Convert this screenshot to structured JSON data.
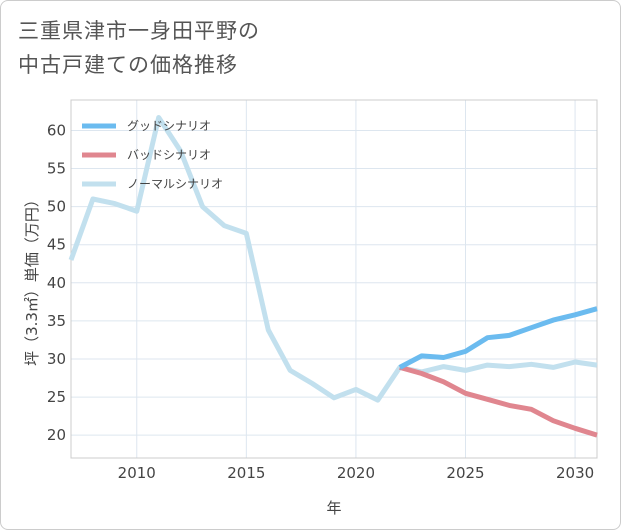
{
  "title_lines": [
    "三重県津市一身田平野の",
    "中古戸建ての価格推移"
  ],
  "chart_data": {
    "type": "line",
    "title": "三重県津市一身田平野の中古戸建ての価格推移",
    "xlabel": "年",
    "ylabel": "坪（3.3㎡）単価（万円）",
    "xlim": [
      2007,
      2031
    ],
    "ylim": [
      17,
      64
    ],
    "xticks": [
      2010,
      2015,
      2020,
      2025,
      2030
    ],
    "yticks": [
      20,
      25,
      30,
      35,
      40,
      45,
      50,
      55,
      60
    ],
    "grid": true,
    "legend_position": "top-left",
    "series": [
      {
        "name": "グッドシナリオ",
        "color": "#6bbbef",
        "x": [
          2022,
          2023,
          2024,
          2025,
          2026,
          2027,
          2028,
          2029,
          2030,
          2031
        ],
        "values": [
          28.9,
          30.4,
          30.2,
          31.0,
          32.8,
          33.1,
          34.1,
          35.1,
          35.8,
          36.6
        ]
      },
      {
        "name": "バッドシナリオ",
        "color": "#e0868f",
        "x": [
          2022,
          2023,
          2024,
          2025,
          2026,
          2027,
          2028,
          2029,
          2030,
          2031
        ],
        "values": [
          28.9,
          28.1,
          27.0,
          25.5,
          24.7,
          23.9,
          23.4,
          21.9,
          20.9,
          20.0
        ]
      },
      {
        "name": "ノーマルシナリオ",
        "color": "#c2e0ee",
        "x": [
          2007,
          2008,
          2009,
          2010,
          2011,
          2012,
          2013,
          2014,
          2015,
          2016,
          2017,
          2018,
          2019,
          2020,
          2021,
          2022,
          2023,
          2024,
          2025,
          2026,
          2027,
          2028,
          2029,
          2030,
          2031
        ],
        "values": [
          43.0,
          51.0,
          50.4,
          49.4,
          61.7,
          57.3,
          50.0,
          47.5,
          46.5,
          33.8,
          28.5,
          26.8,
          24.9,
          26.0,
          24.6,
          28.9,
          28.3,
          29.0,
          28.5,
          29.2,
          29.0,
          29.3,
          28.9,
          29.6,
          29.2
        ]
      }
    ]
  }
}
